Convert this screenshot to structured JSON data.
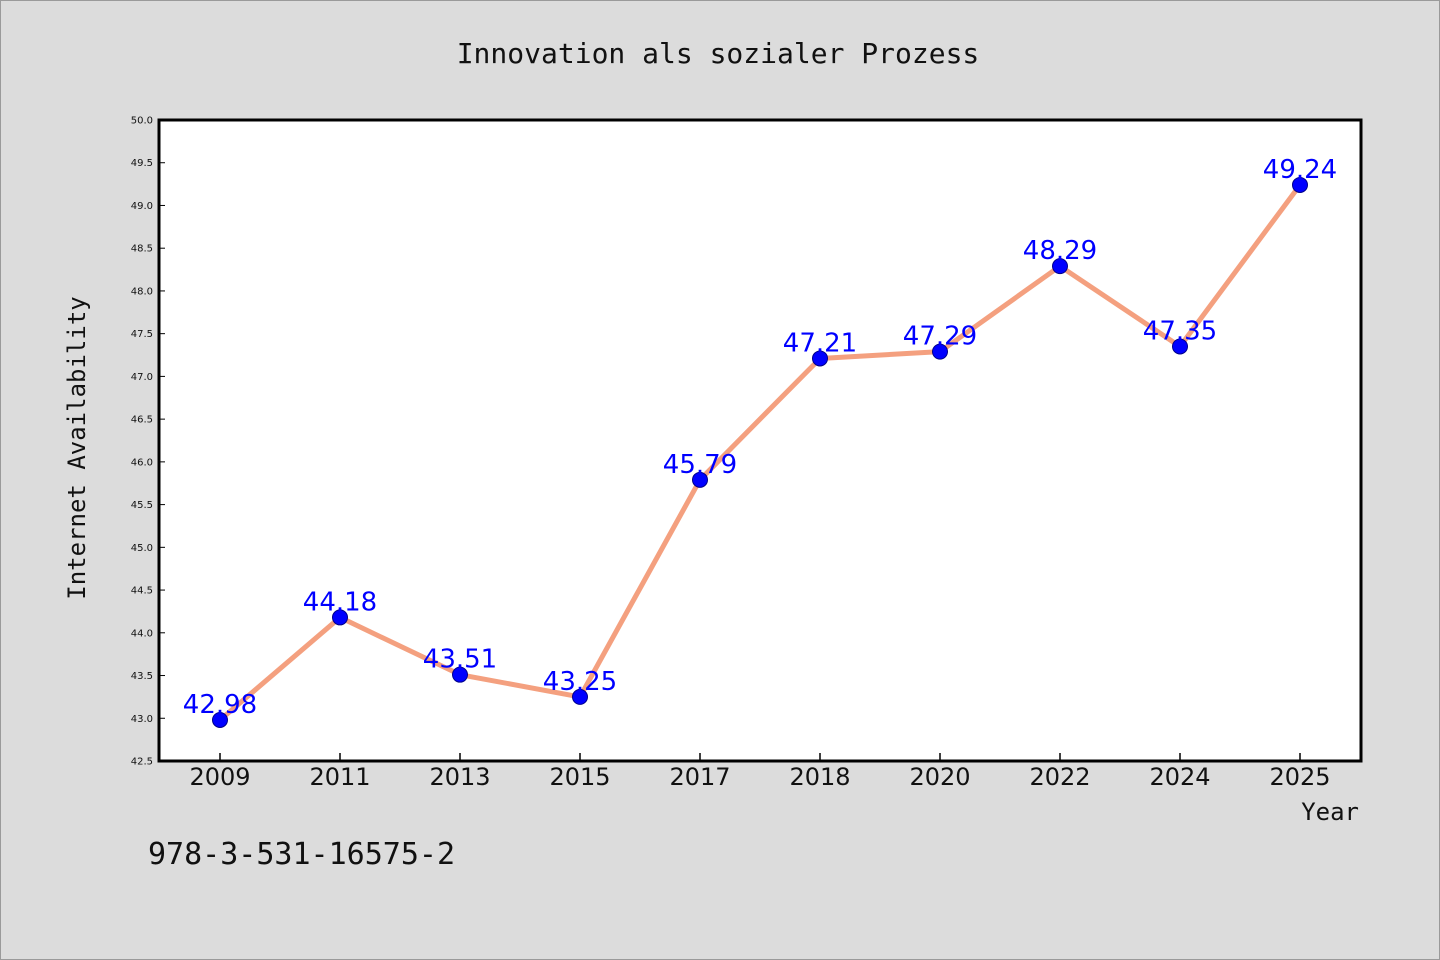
{
  "chart_data": {
    "type": "line",
    "title": "Innovation als sozialer Prozess",
    "xlabel": "Year",
    "ylabel": "Internet Availability",
    "categories": [
      "2009",
      "2011",
      "2013",
      "2015",
      "2017",
      "2018",
      "2020",
      "2022",
      "2024",
      "2025"
    ],
    "series": [
      {
        "values": [
          42.98,
          44.18,
          43.51,
          43.25,
          45.79,
          47.21,
          47.29,
          48.29,
          47.35,
          49.24
        ],
        "data_labels": [
          "42.98",
          "44.18",
          "43.51",
          "43.25",
          "45.79",
          "47.21",
          "47.29",
          "48.29",
          "47.35",
          "49.24"
        ],
        "line_color": "#f4a07f",
        "marker_color": "#0000ff"
      }
    ],
    "ylim": [
      42.5,
      50.0
    ],
    "yticks": [
      "42.5",
      "43.0",
      "43.5",
      "44.0",
      "44.5",
      "45.0",
      "45.5",
      "46.0",
      "46.5",
      "47.0",
      "47.5",
      "48.0",
      "48.5",
      "49.0",
      "49.5",
      "50.0"
    ],
    "grid": false,
    "legend": "none"
  },
  "footer": {
    "isbn": "978-3-531-16575-2"
  },
  "colors": {
    "background": "#dcdcdc",
    "plot_background": "#ffffff",
    "label_color": "#0000ff"
  }
}
